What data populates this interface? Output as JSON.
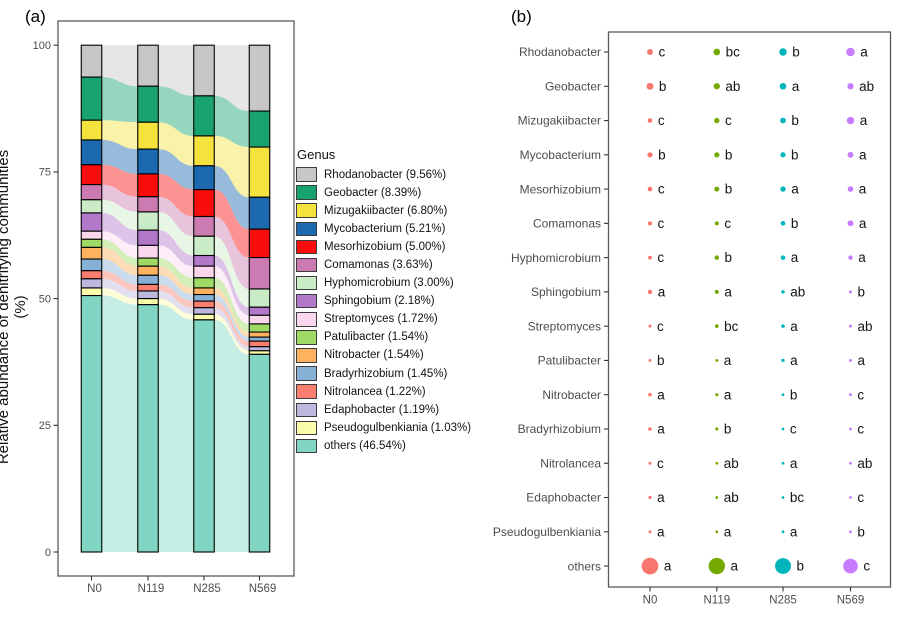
{
  "chart_data": [
    {
      "type": "area",
      "tag": "(a)",
      "subtype": "alluvial-stacked-bar",
      "ylabel": "Relative abundance of denitrifying communities (%)",
      "ylim": [
        0,
        100
      ],
      "yticks": [
        0,
        25,
        50,
        75,
        100
      ],
      "categories": [
        "N0",
        "N119",
        "N285",
        "N569"
      ],
      "legend_title": "Genus",
      "legend_position": "right",
      "grid": "off",
      "series": [
        {
          "name": "Rhodanobacter",
          "legend_label": "Rhodanobacter (9.56%)",
          "color": "#C7C7C7",
          "values": [
            6.3,
            8.1,
            10.0,
            13.0
          ]
        },
        {
          "name": "Geobacter",
          "legend_label": "Geobacter (8.39%)",
          "color": "#17A26E",
          "values": [
            8.5,
            7.1,
            7.9,
            7.1
          ]
        },
        {
          "name": "Mizugakiibacter",
          "legend_label": "Mizugakiibacter (6.80%)",
          "color": "#F4E23D",
          "values": [
            3.9,
            5.3,
            5.9,
            9.9
          ]
        },
        {
          "name": "Mycobacterium",
          "legend_label": "Mycobacterium (5.21%)",
          "color": "#1D69B0",
          "values": [
            4.9,
            4.9,
            4.7,
            6.3
          ]
        },
        {
          "name": "Mesorhizobium",
          "legend_label": "Mesorhizobium (5.00%)",
          "color": "#F90D0D",
          "values": [
            3.9,
            4.5,
            5.3,
            5.6
          ]
        },
        {
          "name": "Comamonas",
          "legend_label": "Comamonas (3.63%)",
          "color": "#CC7AB2",
          "values": [
            3.0,
            3.0,
            3.9,
            6.2
          ]
        },
        {
          "name": "Hyphomicrobium",
          "legend_label": "Hyphomicrobium (3.00%)",
          "color": "#C9ECC6",
          "values": [
            2.6,
            3.6,
            3.8,
            3.6
          ]
        },
        {
          "name": "Sphingobium",
          "legend_label": "Sphingobium (2.18%)",
          "color": "#B279CA",
          "values": [
            3.6,
            3.0,
            2.1,
            1.6
          ]
        },
        {
          "name": "Streptomyces",
          "legend_label": "Streptomyces (1.72%)",
          "color": "#FBD7EE",
          "values": [
            1.6,
            2.5,
            2.3,
            1.7
          ]
        },
        {
          "name": "Patulibacter",
          "legend_label": "Patulibacter (1.54%)",
          "color": "#A0DA66",
          "values": [
            1.6,
            1.6,
            2.0,
            1.6
          ]
        },
        {
          "name": "Nitrobacter",
          "legend_label": "Nitrobacter (1.54%)",
          "color": "#FCB25E",
          "values": [
            2.3,
            1.8,
            1.3,
            1.0
          ]
        },
        {
          "name": "Bradyrhizobium",
          "legend_label": "Bradyrhizobium (1.45%)",
          "color": "#87B0D6",
          "values": [
            2.3,
            1.8,
            1.3,
            0.8
          ]
        },
        {
          "name": "Nitrolancea",
          "legend_label": "Nitrolancea (1.22%)",
          "color": "#F97E6F",
          "values": [
            1.6,
            1.3,
            1.3,
            1.1
          ]
        },
        {
          "name": "Edaphobacter",
          "legend_label": "Edaphobacter (1.19%)",
          "color": "#BDB8DE",
          "values": [
            1.8,
            1.5,
            1.3,
            0.8
          ]
        },
        {
          "name": "Pseudogulbenkiania",
          "legend_label": "Pseudogulbenkiania (1.03%)",
          "color": "#FBFBAC",
          "values": [
            1.5,
            1.2,
            1.1,
            0.7
          ]
        },
        {
          "name": "others",
          "legend_label": "others (46.54%)",
          "color": "#80D6C3",
          "values": [
            50.6,
            48.8,
            45.8,
            39.0
          ]
        }
      ]
    },
    {
      "type": "scatter",
      "tag": "(b)",
      "subtype": "dot-size-significance-matrix",
      "categories": [
        "N0",
        "N119",
        "N285",
        "N569"
      ],
      "treatment_colors": [
        "#F8766D",
        "#76A900",
        "#00B6BC",
        "#C77CFF"
      ],
      "size_encoding": "dot area proportional to relative abundance (same values as panel a series)",
      "grid": "off",
      "rows": [
        {
          "genus": "Rhodanobacter",
          "letters": [
            "c",
            "bc",
            "b",
            "a"
          ]
        },
        {
          "genus": "Geobacter",
          "letters": [
            "b",
            "ab",
            "a",
            "ab"
          ]
        },
        {
          "genus": "Mizugakiibacter",
          "letters": [
            "c",
            "c",
            "b",
            "a"
          ]
        },
        {
          "genus": "Mycobacterium",
          "letters": [
            "b",
            "b",
            "b",
            "a"
          ]
        },
        {
          "genus": "Mesorhizobium",
          "letters": [
            "c",
            "b",
            "a",
            "a"
          ]
        },
        {
          "genus": "Comamonas",
          "letters": [
            "c",
            "c",
            "b",
            "a"
          ]
        },
        {
          "genus": "Hyphomicrobium",
          "letters": [
            "c",
            "b",
            "a",
            "a"
          ]
        },
        {
          "genus": "Sphingobium",
          "letters": [
            "a",
            "a",
            "ab",
            "b"
          ]
        },
        {
          "genus": "Streptomyces",
          "letters": [
            "c",
            "bc",
            "a",
            "ab"
          ]
        },
        {
          "genus": "Patulibacter",
          "letters": [
            "b",
            "a",
            "a",
            "a"
          ]
        },
        {
          "genus": "Nitrobacter",
          "letters": [
            "a",
            "a",
            "b",
            "c"
          ]
        },
        {
          "genus": "Bradyrhizobium",
          "letters": [
            "a",
            "b",
            "c",
            "c"
          ]
        },
        {
          "genus": "Nitrolancea",
          "letters": [
            "c",
            "ab",
            "a",
            "ab"
          ]
        },
        {
          "genus": "Edaphobacter",
          "letters": [
            "a",
            "ab",
            "bc",
            "c"
          ]
        },
        {
          "genus": "Pseudogulbenkiania",
          "letters": [
            "a",
            "a",
            "a",
            "b"
          ]
        },
        {
          "genus": "others",
          "letters": [
            "a",
            "a",
            "b",
            "c"
          ]
        }
      ]
    }
  ]
}
